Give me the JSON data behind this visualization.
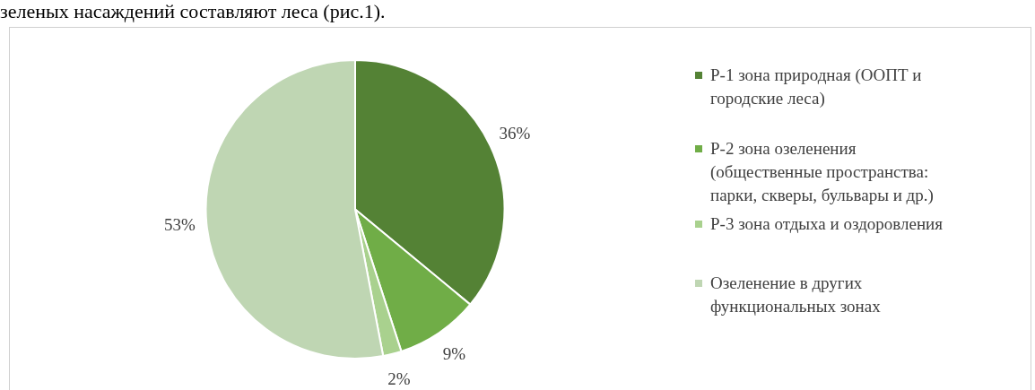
{
  "chart_data": {
    "type": "pie",
    "categories": [
      "Р-1 зона природная (ООПТ и городские леса)",
      "Р-2 зона озеленения (общественные пространства: парки, скверы, бульвары и др.)",
      "Р-3 зона отдыха и оздоровления",
      "Озеленение в других функциональных зонах"
    ],
    "values": [
      36,
      9,
      2,
      53
    ],
    "colors": [
      "#548235",
      "#70ad47",
      "#a9d18e",
      "#bfd6b3"
    ],
    "value_labels": [
      "36%",
      "9%",
      "2%",
      "53%"
    ],
    "legend": "right",
    "annotations": [
      "зеленых насаждений составляют леса (рис.1)."
    ]
  }
}
